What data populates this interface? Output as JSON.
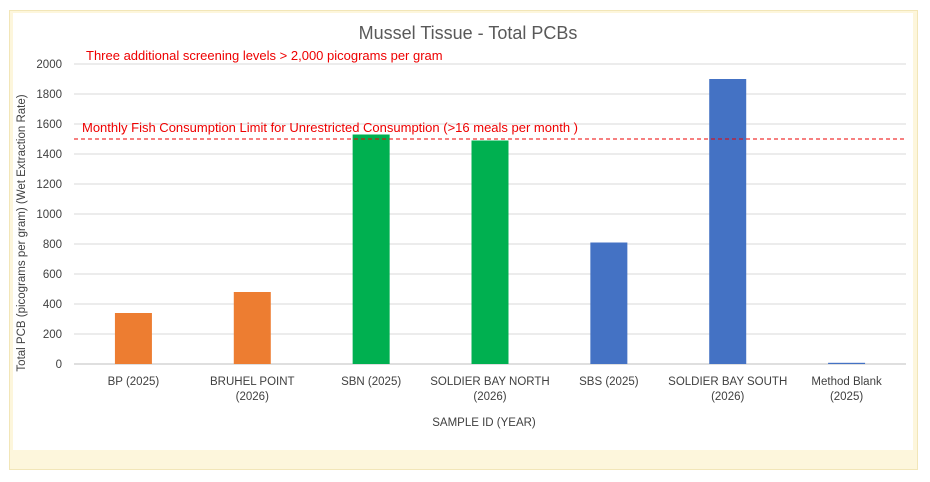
{
  "chart_data": {
    "type": "bar",
    "title": "Mussel Tissue - Total PCBs",
    "xlabel": "SAMPLE ID (YEAR)",
    "ylabel": "Total PCB (picograms per gram) (Wet Extraction Rate)",
    "ylim": [
      0,
      2000
    ],
    "yticks": [
      0,
      200,
      400,
      600,
      800,
      1000,
      1200,
      1400,
      1600,
      1800,
      2000
    ],
    "grid": true,
    "categories": [
      [
        "BP (2025)"
      ],
      [
        "BRUHEL POINT",
        "(2026)"
      ],
      [
        "SBN (2025)"
      ],
      [
        "SOLDIER BAY NORTH",
        "(2026)"
      ],
      [
        "SBS (2025)"
      ],
      [
        "SOLDIER BAY SOUTH",
        "(2026)"
      ],
      [
        "Method Blank",
        "(2025)"
      ]
    ],
    "values": [
      340,
      480,
      1530,
      1490,
      810,
      1900,
      8
    ],
    "bar_colors": [
      "#ed7d31",
      "#ed7d31",
      "#00b050",
      "#00b050",
      "#4472c4",
      "#4472c4",
      "#4472c4"
    ],
    "reference_line": {
      "value": 1500,
      "color": "#ee0000",
      "style": "dashed",
      "label": "Monthly Fish Consumption Limit for Unrestricted Consumption  (>16 meals per month )"
    },
    "annotations": [
      {
        "text": "Three additional screening levels > 2,000 picograms per gram",
        "color": "#ee0000"
      }
    ]
  }
}
